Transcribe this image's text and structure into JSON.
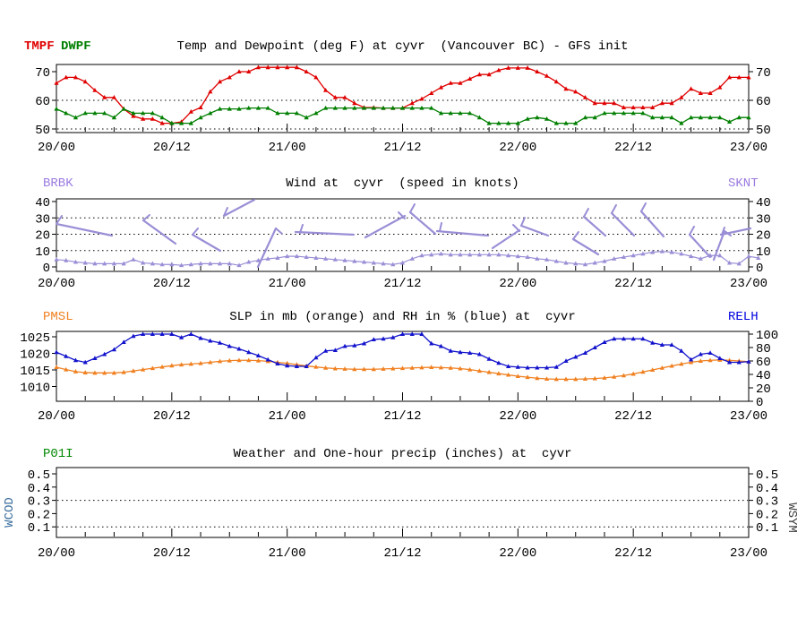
{
  "station_header": {
    "panel1_title": "Temp and Dewpoint (deg F) at cyvr  (Vancouver BC) - GFS init",
    "panel2_title": "Wind at  cyvr  (speed in knots)",
    "panel3_title": "SLP in mb (orange) and RH in % (blue) at  cyvr",
    "panel4_title": "Weather and One-hour precip (inches) at  cyvr"
  },
  "panels": {
    "p1": {
      "label_tmpf": "TMPF",
      "label_dwpf": "DWPF"
    },
    "p2": {
      "label_left": "BRBK",
      "label_right": "SKNT"
    },
    "p3": {
      "label_left": "PMSL",
      "label_right": "RELH"
    },
    "p4": {
      "label_left": "P01I",
      "side_left": "WCOD",
      "side_right": "WSYM"
    }
  },
  "colors": {
    "tmpf": "#e00000",
    "dwpf": "#007f00",
    "wind_line": "#9b8ed6",
    "wind_label": "#9b7ae0",
    "pmsl": "#f08020",
    "relh": "#1212cc",
    "relh_label": "#0000e0",
    "p01i_label": "#008800",
    "wcod_label": "#3a6e9e",
    "wsym_label": "#3c3c3c",
    "axis": "#000000",
    "background": "#ffffff"
  },
  "axis": {
    "x_major_labels": [
      "20/00",
      "20/12",
      "21/00",
      "21/12",
      "22/00",
      "22/12",
      "23/00"
    ],
    "hours_total": 72,
    "minor_step_hours": 3,
    "major_step_hours": 12
  },
  "chart_data": [
    {
      "type": "line",
      "panel": "temp_dewpoint",
      "title": "Temp and Dewpoint (deg F) at cyvr  (Vancouver BC) - GFS init",
      "ylabel_units": "deg F",
      "yticks": [
        70,
        60,
        50
      ],
      "gridlines": [
        60,
        50
      ],
      "ylim": [
        48.75,
        72.5
      ],
      "x_hours_step": 1,
      "series": [
        {
          "name": "TMPF",
          "color_key": "tmpf",
          "values": [
            66,
            68,
            68,
            66.5,
            63.5,
            61,
            61,
            57,
            54.5,
            53.5,
            53.5,
            52,
            52,
            52.5,
            56,
            57.5,
            63,
            66.5,
            68,
            70,
            70,
            71.5,
            71.5,
            71.5,
            71.5,
            71.5,
            70,
            68,
            63.5,
            61,
            61,
            59,
            57.5,
            57.5,
            57.3,
            57.3,
            57.3,
            59,
            60.5,
            62.5,
            64.5,
            66,
            66,
            67.5,
            69,
            69,
            70.5,
            71.3,
            71.3,
            71.3,
            70,
            68.5,
            66.5,
            64,
            63,
            61,
            59,
            59,
            59,
            57.5,
            57.5,
            57.5,
            57.5,
            59,
            59,
            61,
            64,
            62.5,
            62.5,
            64.5,
            68,
            68,
            68
          ]
        },
        {
          "name": "DWPF",
          "color_key": "dwpf",
          "values": [
            57,
            55.5,
            54,
            55.5,
            55.5,
            55.5,
            54,
            57,
            55.5,
            55.5,
            55.5,
            54,
            52,
            52,
            52,
            54,
            55.5,
            57,
            57,
            57,
            57.3,
            57.3,
            57.3,
            55.5,
            55.5,
            55.5,
            54,
            55.5,
            57.3,
            57.3,
            57.3,
            57.3,
            57.3,
            57.3,
            57.3,
            57.3,
            57.3,
            57.3,
            57.3,
            57.3,
            55.5,
            55.5,
            55.5,
            55.5,
            54,
            52,
            52,
            52,
            52,
            53.5,
            54,
            53.5,
            52,
            52,
            52,
            54,
            54,
            55.5,
            55.5,
            55.5,
            55.5,
            55.5,
            54,
            54,
            54,
            52,
            54,
            54,
            54,
            54,
            52.5,
            54,
            54
          ]
        }
      ]
    },
    {
      "type": "line_with_barbs",
      "panel": "wind",
      "title": "Wind at  cyvr  (speed in knots)",
      "ylabel_units": "knots",
      "yticks": [
        40,
        30,
        20,
        10,
        0
      ],
      "gridlines": [
        30,
        20,
        10
      ],
      "ylim": [
        -2.7,
        41.6
      ],
      "series": [
        {
          "name": "SKNT",
          "color_key": "wind_line",
          "values": [
            4.5,
            4,
            3,
            2.5,
            2,
            2,
            2,
            2,
            4.5,
            2.5,
            2,
            1.5,
            1.5,
            1,
            1.5,
            2,
            2,
            2,
            2,
            1,
            3,
            4,
            5,
            5.5,
            6.5,
            6.5,
            6,
            5.5,
            5,
            4.5,
            4,
            3.5,
            3,
            2.5,
            2,
            1.5,
            2.5,
            5,
            7,
            7.5,
            8,
            7.5,
            7.5,
            7.5,
            7.5,
            7.5,
            7.5,
            7,
            6.5,
            6,
            5,
            4.5,
            3.5,
            2.5,
            2,
            1.5,
            2.5,
            3.5,
            5,
            6,
            7,
            8,
            9,
            9.5,
            9,
            8,
            6.5,
            5,
            7,
            7,
            2.5,
            2,
            6.5,
            5.5
          ]
        }
      ],
      "barb_segments": [
        {
          "staff": [
            63,
            250,
            125,
            263
          ],
          "feather": [
            63,
            250,
            69,
            241
          ]
        },
        {
          "staff": [
            160,
            246,
            196,
            272
          ],
          "feather": [
            160,
            246,
            167,
            240
          ]
        },
        {
          "staff": [
            215,
            262,
            246,
            280
          ],
          "feather": [
            215,
            262,
            221,
            255
          ]
        },
        {
          "staff": [
            250,
            241,
            284,
            223
          ],
          "feather": [
            250,
            241,
            254,
            232
          ]
        },
        {
          "staff": [
            288,
            298,
            308,
            255
          ],
          "feather": [
            308,
            255,
            315,
            261
          ]
        },
        {
          "staff": [
            330,
            259,
            395,
            262
          ],
          "feather": [
            338,
            251,
            335,
            260
          ]
        },
        {
          "staff": [
            408,
            265,
            452,
            241
          ],
          "feather": [
            445,
            237,
            452,
            244
          ]
        },
        {
          "staff": [
            458,
            237,
            486,
            261
          ],
          "feather": [
            458,
            237,
            463,
            228
          ]
        },
        {
          "staff": [
            488,
            258,
            545,
            263
          ],
          "feather": [
            493,
            249,
            491,
            258
          ]
        },
        {
          "staff": [
            550,
            277,
            580,
            257
          ],
          "feather": [
            573,
            251,
            580,
            258
          ]
        },
        {
          "staff": [
            582,
            252,
            612,
            263
          ],
          "feather": [
            582,
            252,
            586,
            243
          ]
        },
        {
          "staff": [
            640,
            267,
            668,
            284
          ],
          "feather": [
            640,
            267,
            646,
            259
          ]
        },
        {
          "staff": [
            652,
            242,
            676,
            263
          ],
          "feather": [
            652,
            242,
            657,
            233
          ]
        },
        {
          "staff": [
            683,
            238,
            708,
            263
          ],
          "feather": [
            683,
            238,
            688,
            229
          ]
        },
        {
          "staff": [
            716,
            236,
            741,
            264
          ],
          "feather": [
            716,
            236,
            721,
            227
          ]
        },
        {
          "staff": [
            770,
            262,
            793,
            287
          ],
          "feather": [
            770,
            262,
            775,
            253
          ]
        },
        {
          "staff": [
            797,
            290,
            809,
            258
          ],
          "feather": [
            809,
            258,
            816,
            263
          ]
        },
        {
          "staff": [
            805,
            262,
            838,
            255
          ],
          "feather": [
            809,
            254,
            806,
            262
          ]
        }
      ]
    },
    {
      "type": "line_dual_axis",
      "panel": "slp_rh",
      "title": "SLP in mb (orange) and RH in % (blue) at  cyvr",
      "left_ticks": [
        1025,
        1020,
        1015,
        1010
      ],
      "right_ticks": [
        100,
        80,
        60,
        40,
        20,
        0
      ],
      "gridlines": [],
      "left_ylim_mb": [
        1005.3,
        1026.9
      ],
      "right_ylim_pct": [
        0,
        104
      ],
      "series": [
        {
          "name": "PMSL",
          "axis": "left",
          "color_key": "pmsl",
          "values": [
            1015.8,
            1015.1,
            1014.5,
            1014.2,
            1014.1,
            1014.1,
            1014.1,
            1014.3,
            1014.7,
            1015.1,
            1015.5,
            1015.9,
            1016.3,
            1016.6,
            1016.8,
            1017,
            1017.3,
            1017.6,
            1017.8,
            1017.9,
            1017.9,
            1017.8,
            1017.6,
            1017.3,
            1017,
            1016.6,
            1016.2,
            1015.9,
            1015.6,
            1015.4,
            1015.3,
            1015.2,
            1015.2,
            1015.2,
            1015.3,
            1015.4,
            1015.5,
            1015.6,
            1015.7,
            1015.8,
            1015.7,
            1015.6,
            1015.4,
            1015.1,
            1014.7,
            1014.3,
            1013.9,
            1013.5,
            1013.1,
            1012.8,
            1012.5,
            1012.3,
            1012.2,
            1012.2,
            1012.2,
            1012.3,
            1012.4,
            1012.6,
            1012.9,
            1013.3,
            1013.8,
            1014.4,
            1015,
            1015.6,
            1016.2,
            1016.8,
            1017.3,
            1017.7,
            1017.9,
            1018,
            1017.9,
            1017.7,
            1017.5
          ]
        },
        {
          "name": "RELH",
          "axis": "right",
          "color_key": "relh",
          "values": [
            73,
            67,
            61,
            58,
            64,
            70,
            77,
            88,
            97,
            100,
            100,
            100,
            100,
            95,
            100,
            94,
            90,
            87,
            82,
            78,
            73,
            68,
            62,
            56,
            53,
            52,
            52,
            65,
            75,
            76,
            82,
            83,
            86,
            92,
            93,
            95,
            100,
            100,
            100,
            86,
            82,
            75,
            73,
            72,
            70,
            63,
            57,
            52,
            51,
            50,
            50,
            50,
            51,
            60,
            66,
            72,
            80,
            88,
            93,
            93,
            93,
            93,
            87,
            84,
            84,
            75,
            62,
            70,
            72,
            64,
            58,
            58,
            59
          ]
        }
      ]
    },
    {
      "type": "empty",
      "panel": "precip",
      "title": "Weather and One-hour precip (inches) at  cyvr",
      "yticks": [
        0.5,
        0.4,
        0.3,
        0.2,
        0.1
      ],
      "gridlines": [
        0.3,
        0.1
      ],
      "series": []
    }
  ]
}
